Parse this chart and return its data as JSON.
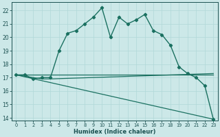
{
  "xlabel": "Humidex (Indice chaleur)",
  "xlim": [
    -0.5,
    23.5
  ],
  "ylim": [
    13.8,
    22.6
  ],
  "yticks": [
    14,
    15,
    16,
    17,
    18,
    19,
    20,
    21,
    22
  ],
  "xticks": [
    0,
    1,
    2,
    3,
    4,
    5,
    6,
    7,
    8,
    9,
    10,
    11,
    12,
    13,
    14,
    15,
    16,
    17,
    18,
    19,
    20,
    21,
    22,
    23
  ],
  "bg_color": "#cce8e8",
  "grid_color": "#b0d8d8",
  "line_color": "#1a7060",
  "series": [
    {
      "x": [
        0,
        1,
        2,
        3,
        4,
        5,
        6,
        7,
        8,
        9,
        10,
        11,
        12,
        13,
        14,
        15,
        16,
        17,
        18,
        19,
        20,
        21,
        22,
        23
      ],
      "y": [
        17.2,
        17.2,
        16.9,
        17.0,
        17.0,
        19.0,
        20.3,
        20.5,
        21.0,
        21.5,
        22.2,
        20.0,
        21.5,
        21.0,
        21.3,
        21.7,
        20.5,
        20.2,
        19.4,
        17.8,
        17.3,
        17.0,
        16.4,
        13.9
      ],
      "marker": "D",
      "markersize": 2.2,
      "linewidth": 1.0
    },
    {
      "x": [
        0,
        23
      ],
      "y": [
        17.2,
        17.2
      ],
      "marker": null,
      "markersize": 0,
      "linewidth": 0.9
    },
    {
      "x": [
        0,
        3,
        4,
        23
      ],
      "y": [
        17.2,
        16.9,
        16.9,
        17.3
      ],
      "marker": null,
      "markersize": 0,
      "linewidth": 0.9
    },
    {
      "x": [
        0,
        23
      ],
      "y": [
        17.2,
        13.9
      ],
      "marker": null,
      "markersize": 0,
      "linewidth": 0.9
    }
  ]
}
